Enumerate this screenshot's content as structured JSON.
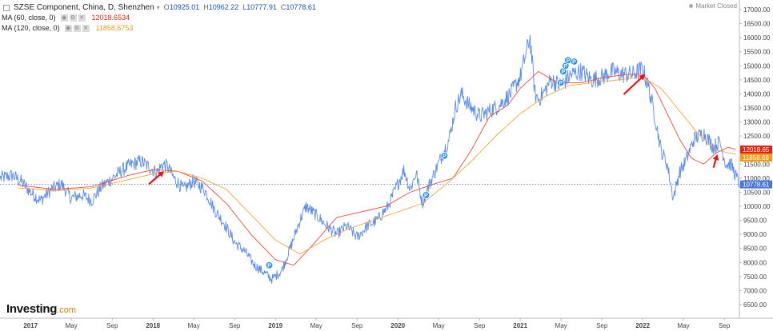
{
  "legend": {
    "main": {
      "title": "SZSE Component, China, D, Shenzhen",
      "o_label": "O",
      "o": "10925.01",
      "h_label": "H",
      "h": "10962.22",
      "l_label": "L",
      "l": "10777.91",
      "c_label": "C",
      "c": "10778.61"
    },
    "ma60": {
      "label": "MA (60, close, 0)",
      "value": "12018.6534",
      "color": "#e8220e"
    },
    "ma120": {
      "label": "MA (120, close, 0)",
      "value": "11858.6753",
      "color": "#f39c12"
    }
  },
  "status": "Market Closed",
  "logo": {
    "name": "Investing",
    "suffix": ".com"
  },
  "colors": {
    "price": "#5b8def",
    "ma60": "#f04c3c",
    "ma120": "#f6a63a",
    "arrow": "#e8141c",
    "axis_text": "#444444",
    "marker": "#1e90ff"
  },
  "chart_data": {
    "type": "line",
    "title": "SZSE Component, China, D, Shenzhen",
    "ylim": [
      6500,
      17000
    ],
    "y_ticks": [
      "17000.00",
      "16500.00",
      "16000.00",
      "15500.00",
      "15000.00",
      "14500.00",
      "14000.00",
      "13500.00",
      "13000.00",
      "12500.00",
      "12000.00",
      "11500.00",
      "11000.00",
      "10500.00",
      "10000.00",
      "9500.00",
      "9000.00",
      "8500.00",
      "8000.00",
      "7500.00",
      "7000.00",
      "6500.00"
    ],
    "x_ticks": [
      {
        "label": "2017",
        "t": 2017.0,
        "bold": true
      },
      {
        "label": "May",
        "t": 2017.333
      },
      {
        "label": "Sep",
        "t": 2017.667
      },
      {
        "label": "2018",
        "t": 2018.0,
        "bold": true
      },
      {
        "label": "May",
        "t": 2018.333
      },
      {
        "label": "Sep",
        "t": 2018.667
      },
      {
        "label": "2019",
        "t": 2019.0,
        "bold": true
      },
      {
        "label": "May",
        "t": 2019.333
      },
      {
        "label": "Sep",
        "t": 2019.667
      },
      {
        "label": "2020",
        "t": 2020.0,
        "bold": true
      },
      {
        "label": "May",
        "t": 2020.333
      },
      {
        "label": "Sep",
        "t": 2020.667
      },
      {
        "label": "2021",
        "t": 2021.0,
        "bold": true
      },
      {
        "label": "May",
        "t": 2021.333
      },
      {
        "label": "Sep",
        "t": 2021.667
      },
      {
        "label": "2022",
        "t": 2022.0,
        "bold": true
      },
      {
        "label": "May",
        "t": 2022.333
      },
      {
        "label": "Sep",
        "t": 2022.667
      }
    ],
    "x_range": [
      2016.75,
      2022.79
    ],
    "series": [
      {
        "name": "SZSE Component (close)",
        "x": [
          2016.75,
          2016.85,
          2016.92,
          2017.0,
          2017.08,
          2017.17,
          2017.25,
          2017.33,
          2017.42,
          2017.5,
          2017.58,
          2017.67,
          2017.75,
          2017.83,
          2017.9,
          2017.97,
          2018.03,
          2018.08,
          2018.12,
          2018.17,
          2018.25,
          2018.33,
          2018.42,
          2018.5,
          2018.58,
          2018.67,
          2018.75,
          2018.83,
          2018.92,
          2018.97,
          2019.05,
          2019.12,
          2019.2,
          2019.25,
          2019.33,
          2019.42,
          2019.5,
          2019.58,
          2019.67,
          2019.75,
          2019.83,
          2019.92,
          2020.0,
          2020.05,
          2020.1,
          2020.15,
          2020.2,
          2020.25,
          2020.33,
          2020.42,
          2020.47,
          2020.52,
          2020.58,
          2020.67,
          2020.75,
          2020.83,
          2020.92,
          2021.0,
          2021.05,
          2021.08,
          2021.12,
          2021.15,
          2021.2,
          2021.25,
          2021.33,
          2021.42,
          2021.5,
          2021.58,
          2021.67,
          2021.75,
          2021.83,
          2021.92,
          2022.0,
          2022.05,
          2022.1,
          2022.15,
          2022.2,
          2022.25,
          2022.3,
          2022.35,
          2022.42,
          2022.5,
          2022.58,
          2022.63,
          2022.68,
          2022.72,
          2022.76,
          2022.79
        ],
        "y": [
          11000,
          11100,
          10900,
          10500,
          10200,
          10600,
          10800,
          10300,
          10400,
          10200,
          10700,
          11000,
          11300,
          11500,
          11600,
          11400,
          11200,
          11500,
          11400,
          11000,
          10600,
          10900,
          10600,
          9900,
          9400,
          8700,
          8400,
          7900,
          7600,
          7400,
          7700,
          8500,
          9500,
          10000,
          9700,
          9300,
          9000,
          9300,
          8900,
          9300,
          9500,
          10000,
          10800,
          11300,
          10600,
          11200,
          10100,
          10700,
          11500,
          12400,
          13500,
          14000,
          13600,
          13200,
          13400,
          13600,
          14000,
          14600,
          15500,
          16000,
          14000,
          13800,
          14100,
          14500,
          14300,
          14700,
          14800,
          14500,
          14600,
          14800,
          14700,
          14700,
          14900,
          14200,
          13200,
          12000,
          11500,
          10300,
          11200,
          11600,
          12400,
          12600,
          12100,
          12300,
          11500,
          11500,
          11100,
          10779
        ]
      },
      {
        "name": "MA (60, close, 0)",
        "x": [
          2016.9,
          2017.2,
          2017.5,
          2017.8,
          2018.0,
          2018.2,
          2018.4,
          2018.6,
          2018.8,
          2019.0,
          2019.15,
          2019.3,
          2019.5,
          2019.7,
          2019.9,
          2020.1,
          2020.3,
          2020.45,
          2020.6,
          2020.75,
          2020.9,
          2021.0,
          2021.15,
          2021.3,
          2021.5,
          2021.7,
          2021.9,
          2022.0,
          2022.1,
          2022.2,
          2022.3,
          2022.4,
          2022.5,
          2022.6,
          2022.7,
          2022.76
        ],
        "y": [
          10750,
          10600,
          10700,
          11100,
          11300,
          11250,
          10900,
          10100,
          9000,
          8100,
          7900,
          8600,
          9600,
          9800,
          10000,
          10500,
          10800,
          11000,
          12000,
          13200,
          13600,
          14200,
          14800,
          14400,
          14400,
          14600,
          14700,
          14700,
          14200,
          13300,
          12400,
          11700,
          11500,
          11900,
          12100,
          12019
        ]
      },
      {
        "name": "MA (120, close, 0)",
        "x": [
          2016.9,
          2017.2,
          2017.5,
          2017.8,
          2018.0,
          2018.2,
          2018.4,
          2018.6,
          2018.8,
          2019.0,
          2019.2,
          2019.4,
          2019.6,
          2019.8,
          2020.0,
          2020.2,
          2020.4,
          2020.6,
          2020.8,
          2021.0,
          2021.2,
          2021.4,
          2021.6,
          2021.8,
          2022.0,
          2022.15,
          2022.3,
          2022.45,
          2022.6,
          2022.7,
          2022.76
        ],
        "y": [
          10650,
          10550,
          10650,
          10950,
          11150,
          11250,
          11000,
          10600,
          9700,
          8800,
          8300,
          8800,
          9200,
          9500,
          9800,
          10100,
          10800,
          11600,
          12500,
          13300,
          13900,
          14300,
          14400,
          14500,
          14600,
          14200,
          13400,
          12600,
          12000,
          11900,
          11859
        ]
      }
    ],
    "current_level": 10778.61,
    "price_labels": [
      {
        "text": "12018.65",
        "value": 12018.65,
        "color": "#e8220e"
      },
      {
        "text": "11858.68",
        "value": 11858.68,
        "color": "#f39c12"
      },
      {
        "text": "10778.61",
        "value": 10778.61,
        "color": "#4a78d8"
      }
    ],
    "markers": [
      {
        "label": "P",
        "x": 2018.95,
        "y": 7900
      },
      {
        "label": "P",
        "x": 2020.23,
        "y": 10400
      },
      {
        "label": "P",
        "x": 2020.38,
        "y": 11800
      },
      {
        "label": "P",
        "x": 2021.33,
        "y": 14400
      },
      {
        "label": "P",
        "x": 2021.35,
        "y": 14800
      },
      {
        "label": "P",
        "x": 2021.37,
        "y": 15000
      },
      {
        "label": "P",
        "x": 2021.39,
        "y": 15200
      },
      {
        "label": "P",
        "x": 2021.44,
        "y": 15150
      }
    ],
    "annotations": [
      {
        "type": "arrow",
        "from": [
          2017.97,
          10800
        ],
        "to": [
          2018.09,
          11250
        ]
      },
      {
        "type": "arrow",
        "from": [
          2021.85,
          14000
        ],
        "to": [
          2022.02,
          14700
        ]
      },
      {
        "type": "arrow",
        "from": [
          2022.58,
          11400
        ],
        "to": [
          2022.61,
          11850
        ]
      }
    ]
  }
}
